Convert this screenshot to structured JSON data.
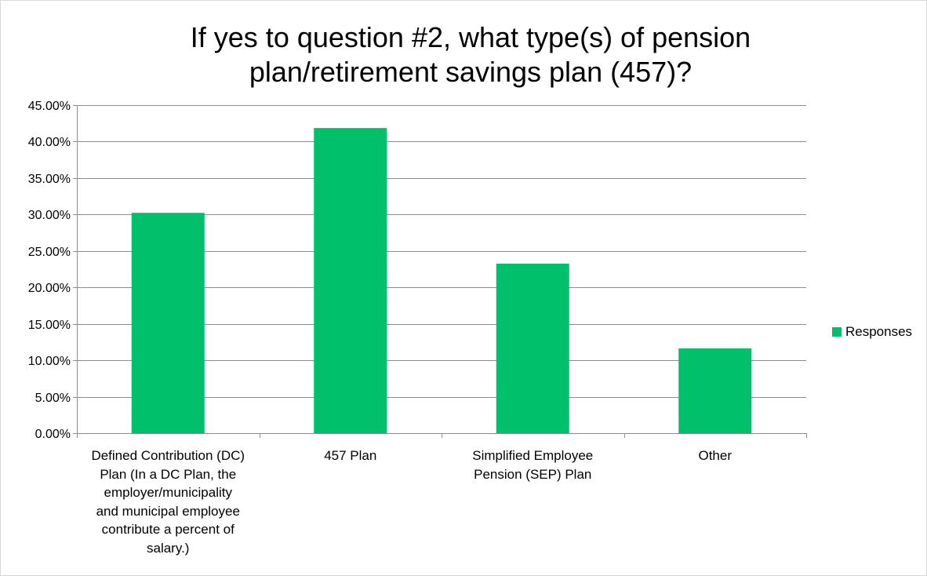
{
  "chart_data": {
    "type": "bar",
    "title_lines": [
      "If yes to question #2, what type(s) of pension",
      "plan/retirement savings plan (457)?"
    ],
    "categories": [
      [
        "Defined Contribution (DC)",
        "Plan (In a DC Plan, the",
        "employer/municipality",
        "and municipal employee",
        "contribute a percent of",
        "salary.)"
      ],
      [
        "457 Plan"
      ],
      [
        "Simplified Employee",
        "Pension (SEP) Plan"
      ],
      [
        "Other"
      ]
    ],
    "series": [
      {
        "name": "Responses",
        "values": [
          30.23,
          41.86,
          23.26,
          11.63
        ],
        "color": "#00c06b"
      }
    ],
    "ylim": [
      0,
      45
    ],
    "ytick_step": 5,
    "ytick_format": "percent_2dp",
    "grid": true,
    "legend_position": "right"
  }
}
